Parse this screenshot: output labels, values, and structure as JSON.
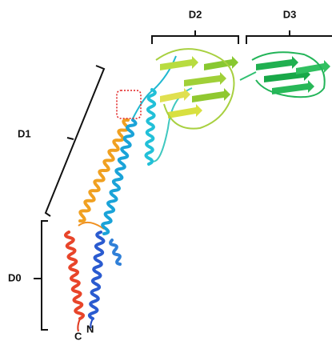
{
  "labels": {
    "d2": "D2",
    "d3": "D3",
    "d1": "D1",
    "d0": "D0",
    "n_terminus": "N",
    "c_terminus": "C"
  }
}
